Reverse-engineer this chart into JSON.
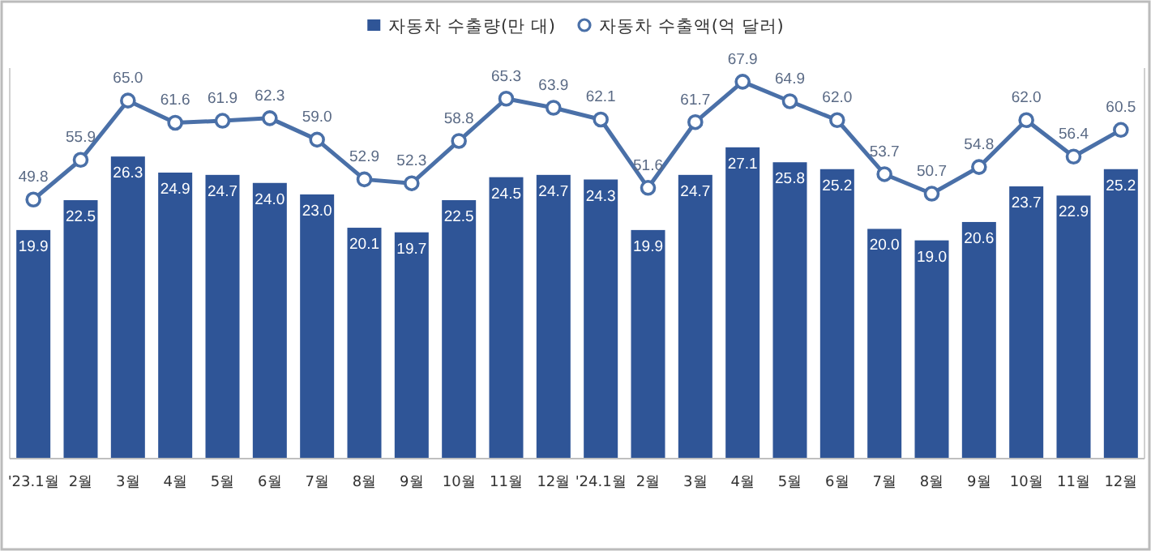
{
  "chart_data": {
    "type": "bar",
    "categories": [
      "'23.1월",
      "2월",
      "3월",
      "4월",
      "5월",
      "6월",
      "7월",
      "8월",
      "9월",
      "10월",
      "11월",
      "12월",
      "'24.1월",
      "2월",
      "3월",
      "4월",
      "5월",
      "6월",
      "7월",
      "8월",
      "9월",
      "10월",
      "11월",
      "12월"
    ],
    "series": [
      {
        "name": "자동차 수출량(만 대)",
        "color": "#2f5597",
        "values": [
          19.9,
          22.5,
          26.3,
          24.9,
          24.7,
          24.0,
          23.0,
          20.1,
          19.7,
          22.5,
          24.5,
          24.7,
          24.3,
          19.9,
          24.7,
          27.1,
          25.8,
          25.2,
          20.0,
          19.0,
          20.6,
          23.7,
          22.9,
          25.2
        ],
        "value_labels": [
          "19.9",
          "22.5",
          "26.3",
          "24.9",
          "24.7",
          "24.0",
          "23.0",
          "20.1",
          "19.7",
          "22.5",
          "24.5",
          "24.7",
          "24.3",
          "19.9",
          "24.7",
          "27.1",
          "25.8",
          "25.2",
          "20.0",
          "19.0",
          "20.6",
          "23.7",
          "22.9",
          "25.2"
        ]
      },
      {
        "name": "자동차 수출액(억 달러)",
        "type": "line",
        "axis": "y2",
        "color": "#4a70a8",
        "marker": "circle",
        "values": [
          49.8,
          55.9,
          65.0,
          61.6,
          61.9,
          62.3,
          59.0,
          52.9,
          52.3,
          58.8,
          65.3,
          63.9,
          62.1,
          51.6,
          61.7,
          67.9,
          64.9,
          62.0,
          53.7,
          50.7,
          54.8,
          62.0,
          56.4,
          60.5
        ],
        "value_labels": [
          "49.8",
          "55.9",
          "65.0",
          "61.6",
          "61.9",
          "62.3",
          "59.0",
          "52.9",
          "52.3",
          "58.8",
          "65.3",
          "63.9",
          "62.1",
          "51.6",
          "61.7",
          "67.9",
          "64.9",
          "62.0",
          "53.7",
          "50.7",
          "54.8",
          "62.0",
          "56.4",
          "60.5"
        ]
      }
    ],
    "ylim": [
      0,
      34
    ],
    "y2lim": [
      10,
      70
    ],
    "tick_labels": "x",
    "legend": "top"
  }
}
